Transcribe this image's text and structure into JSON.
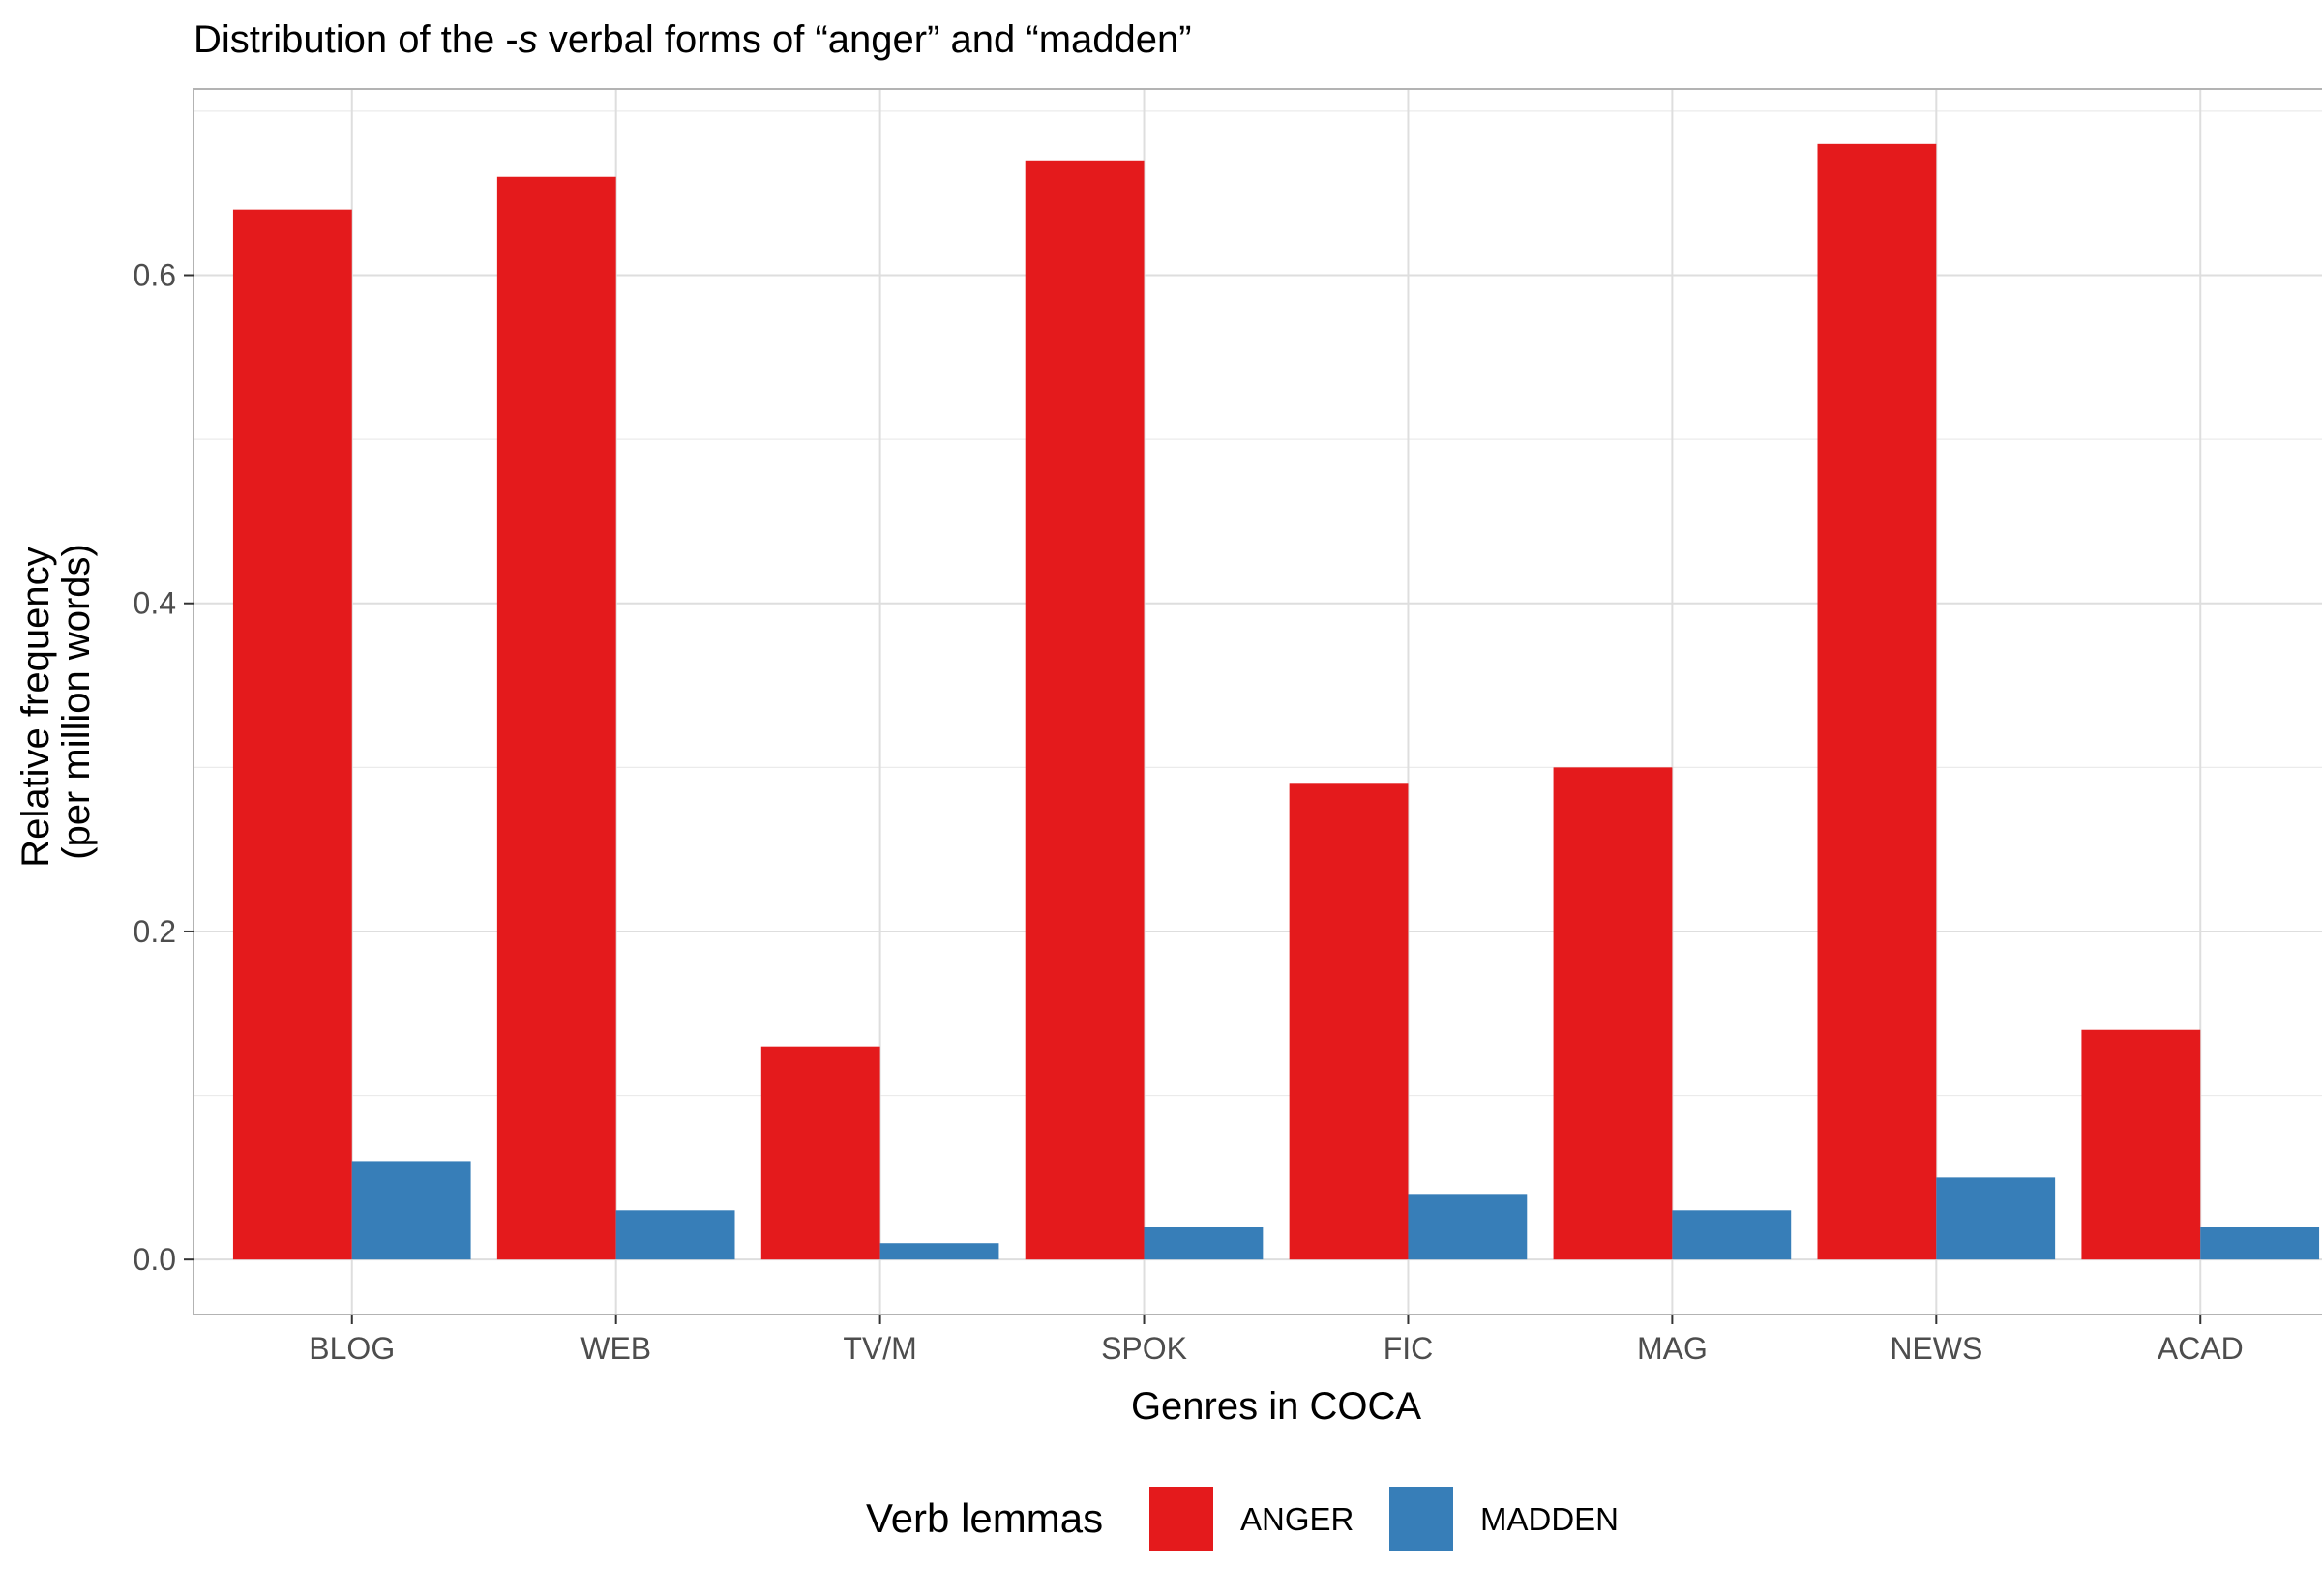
{
  "chart_data": {
    "type": "bar",
    "title_parts": [
      "Distribution of the -",
      "s",
      " verbal forms of “anger” and “madden”"
    ],
    "xlabel": "Genres in COCA",
    "ylabel_lines": [
      "Relative frequency",
      "(per million words)"
    ],
    "categories": [
      "BLOG",
      "WEB",
      "TV/M",
      "SPOK",
      "FIC",
      "MAG",
      "NEWS",
      "ACAD"
    ],
    "series": [
      {
        "name": "ANGER",
        "color": "#E41A1C",
        "values": [
          0.64,
          0.66,
          0.13,
          0.67,
          0.29,
          0.3,
          0.68,
          0.14
        ]
      },
      {
        "name": "MADDEN",
        "color": "#377EB8",
        "values": [
          0.06,
          0.03,
          0.01,
          0.02,
          0.04,
          0.03,
          0.05,
          0.02
        ]
      }
    ],
    "ylim": [
      -0.0335,
      0.7135
    ],
    "yticks": [
      0.0,
      0.2,
      0.4,
      0.6
    ],
    "ytick_labels": [
      "0.0",
      "0.2",
      "0.4",
      "0.6"
    ],
    "grid": true,
    "legend": {
      "title": "Verb lemmas",
      "position": "bottom"
    }
  }
}
